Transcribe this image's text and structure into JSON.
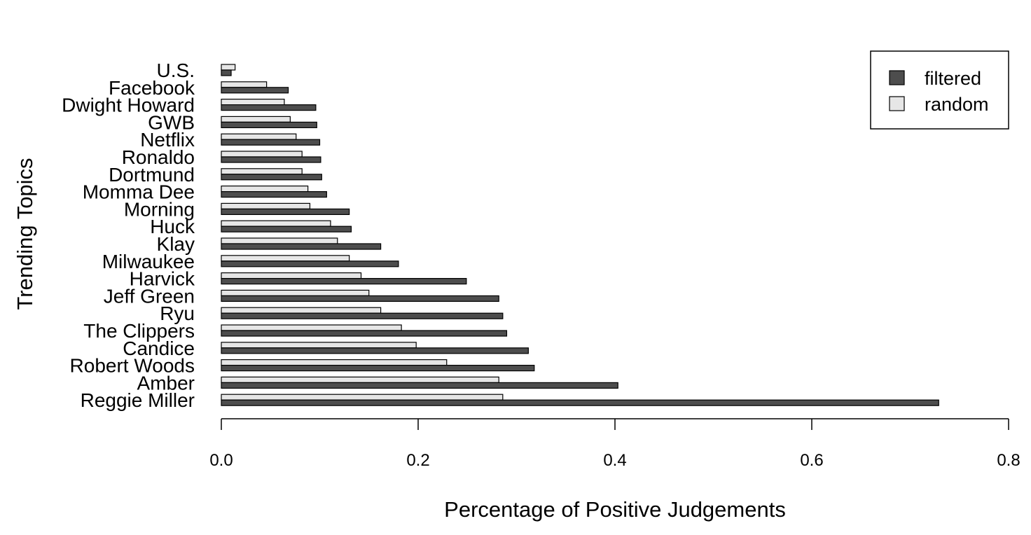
{
  "chart_data": {
    "type": "bar",
    "orientation": "horizontal",
    "title": "",
    "xlabel": "Percentage of Positive Judgements",
    "ylabel": "Trending Topics",
    "xlim": [
      0,
      0.8
    ],
    "xticks": [
      "0.0",
      "0.2",
      "0.4",
      "0.6",
      "0.8"
    ],
    "grid": false,
    "legend_position": "top-right",
    "categories": [
      "U.S.",
      "Facebook",
      "Dwight Howard",
      "GWB",
      "Netflix",
      "Ronaldo",
      "Dortmund",
      "Momma Dee",
      "Morning",
      "Huck",
      "Klay",
      "Milwaukee",
      "Harvick",
      "Jeff Green",
      "Ryu",
      "The Clippers",
      "Candice",
      "Robert Woods",
      "Amber",
      "Reggie Miller"
    ],
    "series": [
      {
        "name": "filtered",
        "color": "#4d4d4d",
        "values": [
          0.01,
          0.068,
          0.096,
          0.097,
          0.1,
          0.101,
          0.102,
          0.107,
          0.13,
          0.132,
          0.162,
          0.18,
          0.249,
          0.282,
          0.286,
          0.29,
          0.312,
          0.318,
          0.403,
          0.729
        ]
      },
      {
        "name": "random",
        "color": "#e6e6e6",
        "values": [
          0.014,
          0.046,
          0.064,
          0.07,
          0.076,
          0.082,
          0.082,
          0.088,
          0.09,
          0.111,
          0.118,
          0.13,
          0.142,
          0.15,
          0.162,
          0.183,
          0.198,
          0.229,
          0.282,
          0.286
        ]
      }
    ]
  }
}
